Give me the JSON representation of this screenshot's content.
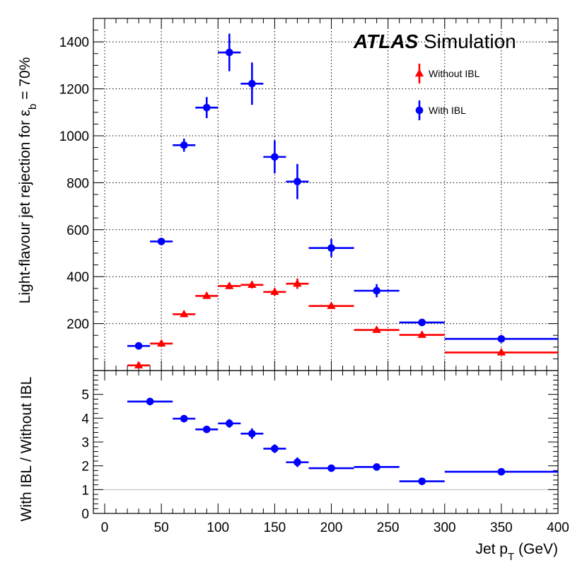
{
  "chart_data": [
    {
      "type": "scatter",
      "panel": "main",
      "ylabel": "Light-flavour jet rejection for ε",
      "ylabel_sub": "b",
      "ylabel_tail": " = 70%",
      "ylim": [
        0,
        1500
      ],
      "xlim": [
        -10,
        400
      ],
      "yticks": [
        200,
        400,
        600,
        800,
        1000,
        1200,
        1400
      ],
      "grid": true,
      "label_bold": "ATLAS",
      "label_text": "Simulation",
      "series": [
        {
          "name": "Without IBL",
          "color": "#ff0000",
          "marker": "triangle",
          "x": [
            30,
            50,
            70,
            90,
            110,
            130,
            150,
            170,
            200,
            240,
            280,
            350
          ],
          "xerr": [
            10,
            10,
            10,
            10,
            10,
            10,
            10,
            10,
            20,
            20,
            20,
            50
          ],
          "y": [
            22,
            115,
            240,
            318,
            360,
            365,
            335,
            370,
            275,
            173,
            152,
            77
          ],
          "yerr": [
            5,
            8,
            10,
            12,
            13,
            15,
            15,
            22,
            10,
            10,
            8,
            7
          ]
        },
        {
          "name": "With IBL",
          "color": "#0000ff",
          "marker": "circle",
          "x": [
            30,
            50,
            70,
            90,
            110,
            130,
            150,
            170,
            200,
            240,
            280,
            350
          ],
          "xerr": [
            10,
            10,
            10,
            10,
            10,
            10,
            10,
            10,
            20,
            20,
            20,
            50
          ],
          "y": [
            105,
            550,
            960,
            1120,
            1355,
            1222,
            910,
            805,
            522,
            340,
            205,
            135
          ],
          "yerr": [
            8,
            12,
            28,
            45,
            80,
            90,
            70,
            75,
            38,
            28,
            15,
            8
          ]
        }
      ]
    },
    {
      "type": "scatter",
      "panel": "ratio",
      "xlabel": "Jet p",
      "xlabel_sub": "T",
      "xlabel_tail": " (GeV)",
      "ylabel": "With IBL / Without IBL",
      "ylim": [
        0,
        6
      ],
      "xlim": [
        -10,
        400
      ],
      "yticks": [
        0,
        1,
        2,
        3,
        4,
        5
      ],
      "xticks": [
        0,
        50,
        100,
        150,
        200,
        250,
        300,
        350,
        400
      ],
      "reference_line": 1,
      "series": [
        {
          "name": "With IBL / Without IBL",
          "color": "#0000ff",
          "marker": "circle",
          "x": [
            40,
            90,
            110,
            130,
            150,
            170,
            200,
            240,
            280,
            350
          ],
          "xerr": [
            20,
            10,
            10,
            10,
            10,
            10,
            20,
            20,
            20,
            50
          ],
          "y": [
            4.7,
            3.53,
            3.78,
            3.35,
            2.72,
            2.15,
            1.9,
            1.95,
            1.35,
            1.75
          ],
          "yerr": [
            0.05,
            0.1,
            0.18,
            0.22,
            0.18,
            0.2,
            0.08,
            0.1,
            0.06,
            0.04
          ]
        },
        {
          "name": "bin-70",
          "color": "#0000ff",
          "marker": "circle",
          "x": [
            70
          ],
          "xerr": [
            10
          ],
          "y": [
            3.98
          ],
          "yerr": [
            0.08
          ]
        }
      ]
    }
  ]
}
